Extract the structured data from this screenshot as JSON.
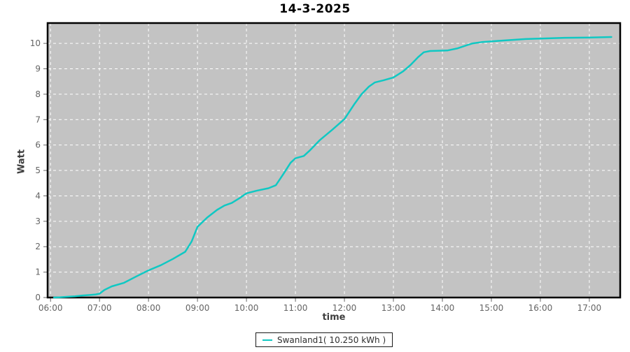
{
  "title": "14-3-2025",
  "colors": {
    "series": "#10c8c3",
    "plot_bg": "#c3c3c3",
    "grid": "#ffffff",
    "plot_border": "#000000",
    "tick": "#666666",
    "tick_label": "#646464",
    "axis_label": "#3f3f3f",
    "title_color": "#000000",
    "legend_border": "#1a1a1a",
    "legend_bg": "#ffffff"
  },
  "legend": {
    "label": "Swanland1( 10.250 kWh )",
    "swatch_color": "#10c8c3",
    "position": "bottom-center"
  },
  "chart_data": {
    "type": "line",
    "title": "14-3-2025",
    "xlabel": "time",
    "ylabel": "Watt",
    "x_tick_hours": [
      6,
      7,
      8,
      9,
      10,
      11,
      12,
      13,
      14,
      15,
      16,
      17
    ],
    "x_tick_labels": [
      "06:00",
      "07:00",
      "08:00",
      "09:00",
      "10:00",
      "11:00",
      "12:00",
      "13:00",
      "14:00",
      "15:00",
      "16:00",
      "17:00"
    ],
    "y_ticks": [
      0,
      1,
      2,
      3,
      4,
      5,
      6,
      7,
      8,
      9,
      10
    ],
    "xlim_hours": [
      5.94,
      17.63
    ],
    "ylim": [
      0,
      10.8
    ],
    "grid": true,
    "grid_style": "dashed-white",
    "legend_position": "bottom",
    "series": [
      {
        "name": "Swanland1( 10.250 kWh )",
        "color": "#10c8c3",
        "total_kwh": "10.250",
        "points": [
          [
            6.07,
            0
          ],
          [
            6.2,
            0.01
          ],
          [
            6.35,
            0.03
          ],
          [
            6.5,
            0.05
          ],
          [
            6.65,
            0.08
          ],
          [
            6.8,
            0.1
          ],
          [
            6.92,
            0.12
          ],
          [
            7.0,
            0.15
          ],
          [
            7.1,
            0.3
          ],
          [
            7.25,
            0.44
          ],
          [
            7.5,
            0.58
          ],
          [
            7.75,
            0.83
          ],
          [
            8.0,
            1.07
          ],
          [
            8.25,
            1.27
          ],
          [
            8.5,
            1.52
          ],
          [
            8.75,
            1.8
          ],
          [
            8.88,
            2.2
          ],
          [
            9.0,
            2.78
          ],
          [
            9.2,
            3.15
          ],
          [
            9.4,
            3.45
          ],
          [
            9.55,
            3.62
          ],
          [
            9.7,
            3.72
          ],
          [
            9.85,
            3.9
          ],
          [
            10.0,
            4.1
          ],
          [
            10.2,
            4.2
          ],
          [
            10.45,
            4.3
          ],
          [
            10.6,
            4.42
          ],
          [
            10.75,
            4.85
          ],
          [
            10.9,
            5.3
          ],
          [
            11.0,
            5.48
          ],
          [
            11.17,
            5.57
          ],
          [
            11.3,
            5.8
          ],
          [
            11.5,
            6.2
          ],
          [
            11.75,
            6.6
          ],
          [
            12.0,
            7.02
          ],
          [
            12.2,
            7.6
          ],
          [
            12.35,
            8.0
          ],
          [
            12.5,
            8.3
          ],
          [
            12.62,
            8.46
          ],
          [
            12.8,
            8.55
          ],
          [
            13.0,
            8.66
          ],
          [
            13.2,
            8.9
          ],
          [
            13.35,
            9.15
          ],
          [
            13.5,
            9.45
          ],
          [
            13.62,
            9.65
          ],
          [
            13.75,
            9.7
          ],
          [
            14.1,
            9.72
          ],
          [
            14.3,
            9.8
          ],
          [
            14.5,
            9.93
          ],
          [
            14.62,
            10.0
          ],
          [
            14.8,
            10.05
          ],
          [
            15.0,
            10.08
          ],
          [
            15.3,
            10.12
          ],
          [
            15.7,
            10.17
          ],
          [
            16.0,
            10.19
          ],
          [
            16.5,
            10.22
          ],
          [
            17.0,
            10.23
          ],
          [
            17.45,
            10.25
          ]
        ]
      }
    ]
  }
}
